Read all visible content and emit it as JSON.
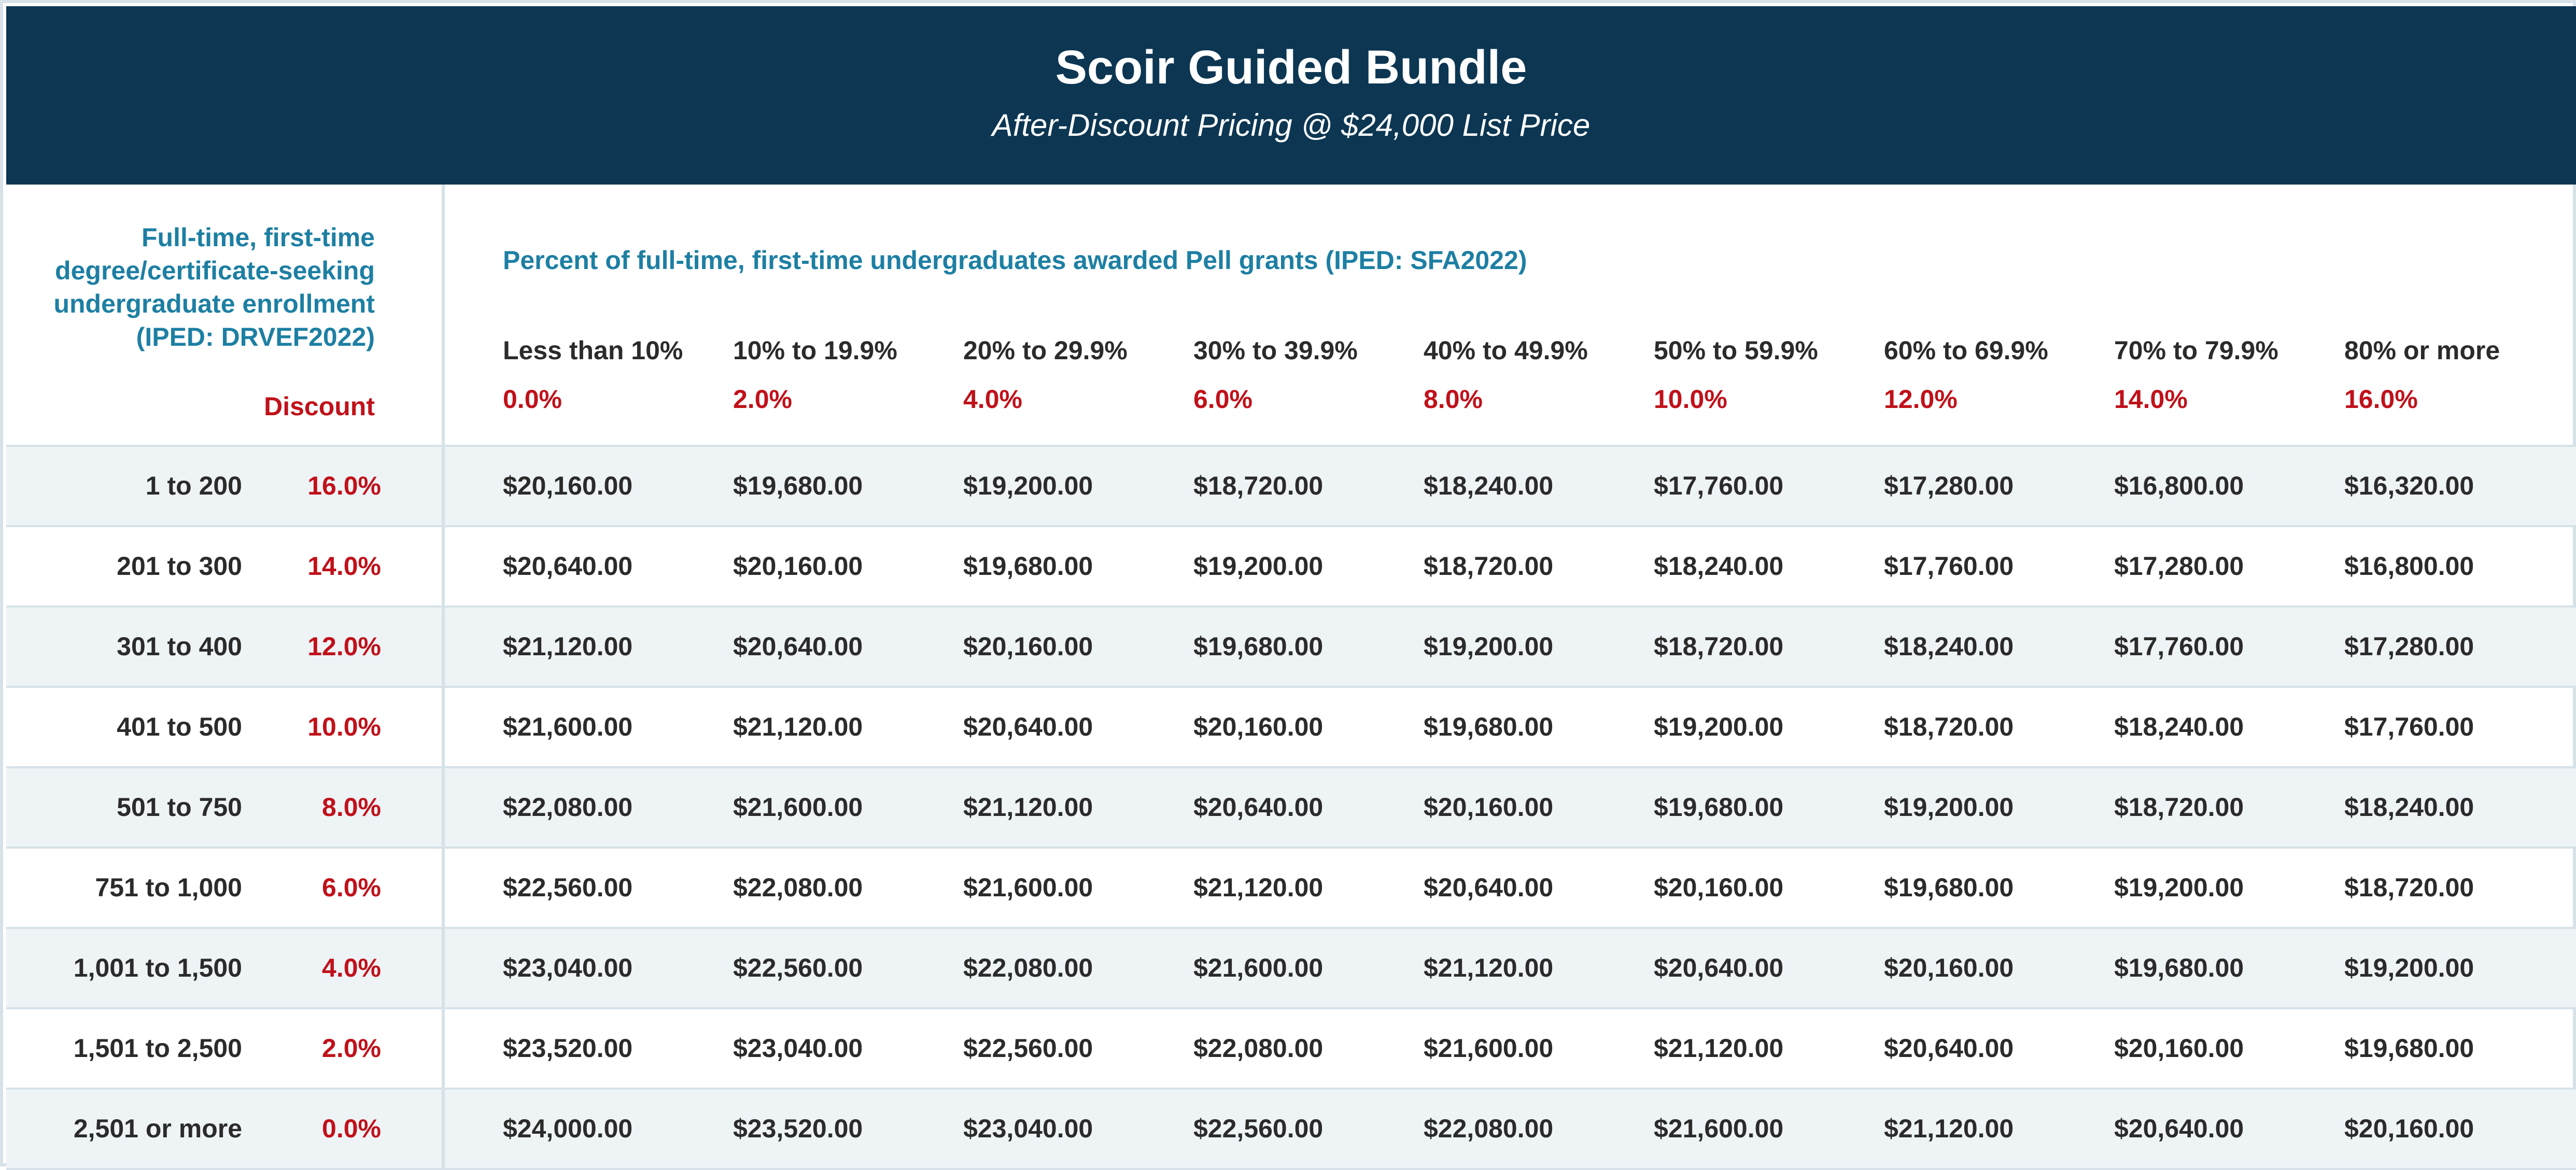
{
  "header": {
    "title": "Scoir Guided Bundle",
    "subtitle": "After-Discount Pricing @ $24,000 List Price"
  },
  "left_header": {
    "lines": [
      "Full-time, first-time",
      "degree/certificate-seeking",
      "undergraduate enrollment",
      "(IPED: DRVEF2022)"
    ],
    "discount_label": "Discount"
  },
  "pell_header": "Percent of full-time, first-time undergraduates awarded Pell grants (IPED: SFA2022)",
  "columns": [
    {
      "label": "Less than 10%",
      "discount": "0.0%"
    },
    {
      "label": "10% to 19.9%",
      "discount": "2.0%"
    },
    {
      "label": "20% to 29.9%",
      "discount": "4.0%"
    },
    {
      "label": "30% to 39.9%",
      "discount": "6.0%"
    },
    {
      "label": "40% to 49.9%",
      "discount": "8.0%"
    },
    {
      "label": "50% to 59.9%",
      "discount": "10.0%"
    },
    {
      "label": "60% to 69.9%",
      "discount": "12.0%"
    },
    {
      "label": "70% to 79.9%",
      "discount": "14.0%"
    },
    {
      "label": "80% or more",
      "discount": "16.0%"
    }
  ],
  "rows": [
    {
      "range": "1 to 200",
      "discount": "16.0%",
      "prices": [
        "$20,160.00",
        "$19,680.00",
        "$19,200.00",
        "$18,720.00",
        "$18,240.00",
        "$17,760.00",
        "$17,280.00",
        "$16,800.00",
        "$16,320.00"
      ]
    },
    {
      "range": "201 to 300",
      "discount": "14.0%",
      "prices": [
        "$20,640.00",
        "$20,160.00",
        "$19,680.00",
        "$19,200.00",
        "$18,720.00",
        "$18,240.00",
        "$17,760.00",
        "$17,280.00",
        "$16,800.00"
      ]
    },
    {
      "range": "301 to 400",
      "discount": "12.0%",
      "prices": [
        "$21,120.00",
        "$20,640.00",
        "$20,160.00",
        "$19,680.00",
        "$19,200.00",
        "$18,720.00",
        "$18,240.00",
        "$17,760.00",
        "$17,280.00"
      ]
    },
    {
      "range": "401 to 500",
      "discount": "10.0%",
      "prices": [
        "$21,600.00",
        "$21,120.00",
        "$20,640.00",
        "$20,160.00",
        "$19,680.00",
        "$19,200.00",
        "$18,720.00",
        "$18,240.00",
        "$17,760.00"
      ]
    },
    {
      "range": "501 to 750",
      "discount": "8.0%",
      "prices": [
        "$22,080.00",
        "$21,600.00",
        "$21,120.00",
        "$20,640.00",
        "$20,160.00",
        "$19,680.00",
        "$19,200.00",
        "$18,720.00",
        "$18,240.00"
      ]
    },
    {
      "range": "751 to 1,000",
      "discount": "6.0%",
      "prices": [
        "$22,560.00",
        "$22,080.00",
        "$21,600.00",
        "$21,120.00",
        "$20,640.00",
        "$20,160.00",
        "$19,680.00",
        "$19,200.00",
        "$18,720.00"
      ]
    },
    {
      "range": "1,001 to 1,500",
      "discount": "4.0%",
      "prices": [
        "$23,040.00",
        "$22,560.00",
        "$22,080.00",
        "$21,600.00",
        "$21,120.00",
        "$20,640.00",
        "$20,160.00",
        "$19,680.00",
        "$19,200.00"
      ]
    },
    {
      "range": "1,501 to 2,500",
      "discount": "2.0%",
      "prices": [
        "$23,520.00",
        "$23,040.00",
        "$22,560.00",
        "$22,080.00",
        "$21,600.00",
        "$21,120.00",
        "$20,640.00",
        "$20,160.00",
        "$19,680.00"
      ]
    },
    {
      "range": "2,501 or more",
      "discount": "0.0%",
      "prices": [
        "$24,000.00",
        "$23,520.00",
        "$23,040.00",
        "$22,560.00",
        "$22,080.00",
        "$21,600.00",
        "$21,120.00",
        "$20,640.00",
        "$20,160.00"
      ]
    }
  ]
}
